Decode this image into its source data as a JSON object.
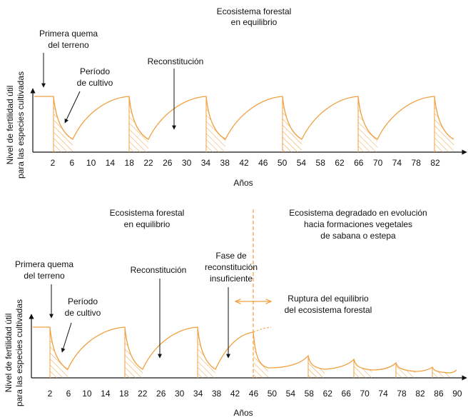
{
  "colors": {
    "curve": "#F0A040",
    "axis": "#111111",
    "text": "#111111",
    "divider": "#F0A040"
  },
  "top": {
    "title": [
      "Ecosistema forestal",
      "en equilibrio"
    ],
    "ylabel": [
      "Nivel de fertilidad útil",
      "para las especies cultivadas"
    ],
    "xlabel": "Años",
    "ticks": [
      "2",
      "6",
      "10",
      "14",
      "18",
      "22",
      "26",
      "30",
      "34",
      "38",
      "42",
      "46",
      "50",
      "54",
      "58",
      "62",
      "66",
      "70",
      "74",
      "78",
      "82"
    ],
    "first_burn": [
      "Primera quema",
      "del terreno"
    ],
    "cultivation": [
      "Período",
      "de cultivo"
    ],
    "reconstitution": "Reconstitución"
  },
  "bottom": {
    "title": [
      "Ecosistema forestal",
      "en equilibrio"
    ],
    "degraded": [
      "Ecosistema degradado en evolución",
      "hacia formaciones vegetales",
      "de sabana o estepa"
    ],
    "ylabel": [
      "Nivel de fertilidad útil",
      "para las especies cultivadas"
    ],
    "xlabel": "Años",
    "ticks": [
      "2",
      "6",
      "10",
      "14",
      "18",
      "22",
      "26",
      "30",
      "34",
      "38",
      "42",
      "46",
      "50",
      "54",
      "58",
      "62",
      "66",
      "70",
      "74",
      "78",
      "82",
      "86",
      "90"
    ],
    "first_burn": [
      "Primera quema",
      "del terreno"
    ],
    "cultivation": [
      "Período",
      "de cultivo"
    ],
    "reconstitution": "Reconstitución",
    "insufficient": [
      "Fase de",
      "reconstitución",
      "insuficiente"
    ],
    "rupture": [
      "Ruptura del equilibrio",
      "del ecosistema forestal"
    ]
  }
}
